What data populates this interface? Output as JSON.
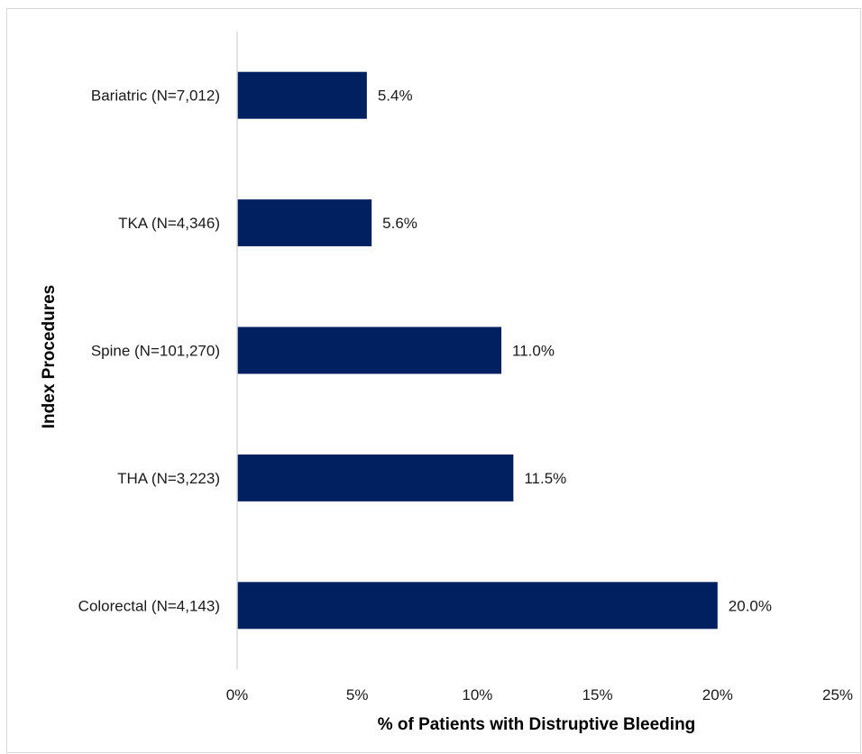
{
  "chart_data": {
    "type": "bar",
    "orientation": "horizontal",
    "title": "",
    "xlabel": "% of Patients with Distruptive Bleeding",
    "ylabel": "Index Procedures",
    "categories": [
      "Bariatric (N=7,012)",
      "TKA (N=4,346)",
      "Spine (N=101,270)",
      "THA (N=3,223)",
      "Colorectal (N=4,143)"
    ],
    "values": [
      5.4,
      5.6,
      11.0,
      11.5,
      20.0
    ],
    "data_labels": [
      "5.4%",
      "5.6%",
      "11.0%",
      "11.5%",
      "20.0%"
    ],
    "xlim": [
      0,
      25
    ],
    "x_ticks": [
      0,
      5,
      10,
      15,
      20,
      25
    ],
    "x_tick_labels": [
      "0%",
      "5%",
      "10%",
      "15%",
      "20%",
      "25%"
    ],
    "grid": false,
    "legend": "none",
    "bar_color": "#002060",
    "axis_color": "#d9d9d9"
  }
}
